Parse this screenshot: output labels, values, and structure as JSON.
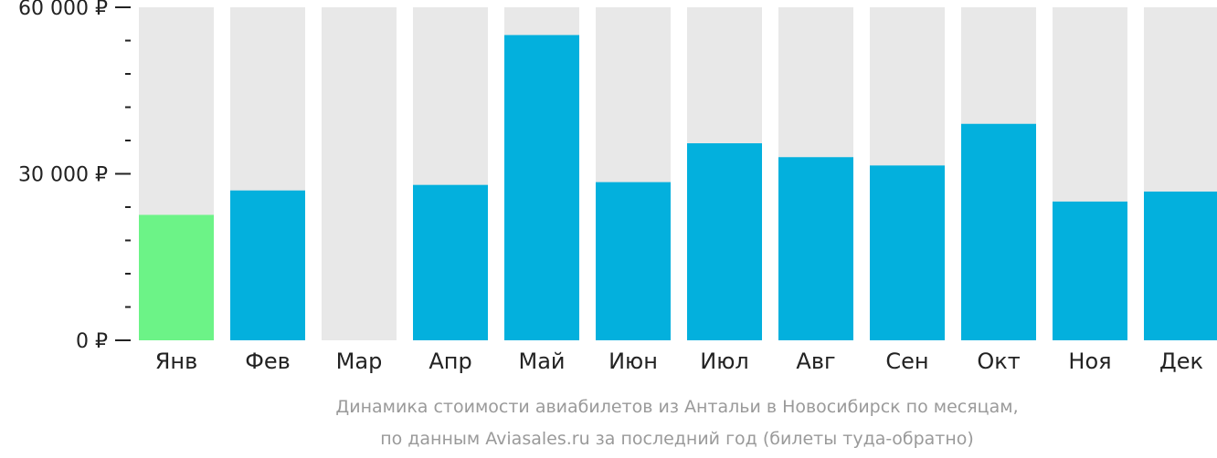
{
  "chart_data": {
    "type": "bar",
    "categories": [
      "Янв",
      "Фев",
      "Мар",
      "Апр",
      "Май",
      "Июн",
      "Июл",
      "Авг",
      "Сен",
      "Окт",
      "Ноя",
      "Дек"
    ],
    "values": [
      22600,
      27000,
      null,
      28000,
      55000,
      28500,
      35500,
      33000,
      31500,
      39000,
      25000,
      26800
    ],
    "ylim": [
      0,
      60000
    ],
    "y_ticks": [
      {
        "value": 0,
        "label": "0 ₽"
      },
      {
        "value": 30000,
        "label": "30 000 ₽"
      },
      {
        "value": 60000,
        "label": "60 000 ₽"
      }
    ],
    "y_minor_step": 6000,
    "highlight_index": 0,
    "colors": {
      "bar": "#03b0dd",
      "highlight": "#6cf387",
      "background_bar": "#e8e8e8",
      "axis": "#222222"
    },
    "caption": [
      "Динамика стоимости авиабилетов из Антальи в Новосибирск по месяцам,",
      "по данным Aviasales.ru за последний год (билеты туда-обратно)"
    ],
    "grid": false,
    "legend": "none"
  }
}
